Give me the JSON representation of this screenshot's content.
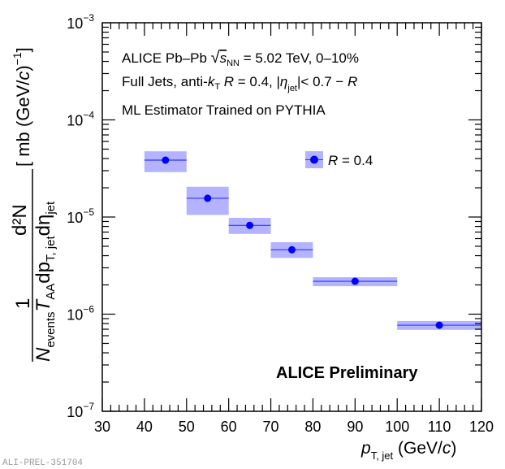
{
  "chart_data": {
    "type": "scatter",
    "title": "",
    "annotations": {
      "line1": {
        "prefix": "ALICE Pb–Pb ",
        "sqrt_symbol": "√",
        "s": "s",
        "s_sub": "NN",
        "suffix": " = 5.02 TeV, 0–10%"
      },
      "line2": {
        "prefix": "Full Jets, anti-",
        "k": "k",
        "k_sub": "T",
        "R_part": " R",
        "mid": " = 0.4, |",
        "eta": "η",
        "eta_sub": "jet",
        "suffix": "|< 0.7 − ",
        "R_end": "R"
      },
      "line3": "ML Estimator Trained on PYTHIA",
      "preliminary": "ALICE Preliminary",
      "figure_id": "ALI-PREL-351704"
    },
    "legend": {
      "position": "top-right",
      "entries": [
        {
          "label_italic": "R",
          "label_rest": " = 0.4",
          "color": "#0000ff",
          "box_color": "#b3b3ff"
        }
      ]
    },
    "xlabel": {
      "main": "p",
      "sub": "T, jet",
      "unit": " (GeV/",
      "unit_italic": "c",
      "unit_close": ")"
    },
    "ylabel": {
      "numerator": "d²N",
      "one": "1",
      "n": "N",
      "n_sub": "events",
      "taa": "T",
      "taa_sub": "AA",
      "dp": "dp",
      "dp_sub": "T, jet",
      "deta": "dη",
      "deta_sub": "jet",
      "unit": "[ mb (GeV/",
      "unit_italic": "c",
      "unit_close": ")",
      "unit_exp": "−1",
      "unit_end": "]"
    },
    "xlim": [
      30,
      120
    ],
    "ylim": [
      1e-07,
      0.001
    ],
    "yscale": "log",
    "xticks": [
      30,
      40,
      50,
      60,
      70,
      80,
      90,
      100,
      110,
      120
    ],
    "yticks": [
      {
        "value": 1e-07,
        "base": "10",
        "exp": "−7"
      },
      {
        "value": 1e-06,
        "base": "10",
        "exp": "−6"
      },
      {
        "value": 1e-05,
        "base": "10",
        "exp": "−5"
      },
      {
        "value": 0.0001,
        "base": "10",
        "exp": "−4"
      },
      {
        "value": 0.001,
        "base": "10",
        "exp": "−3"
      }
    ],
    "series": [
      {
        "name": "R = 0.4",
        "color": "#0000ff",
        "syst_color": "#b3b3ff",
        "points": [
          {
            "x": 45,
            "xlow": 40,
            "xhigh": 50,
            "y": 3.85e-05,
            "syst_low": 2.9e-05,
            "syst_high": 4.75e-05
          },
          {
            "x": 55,
            "xlow": 50,
            "xhigh": 60,
            "y": 1.56e-05,
            "syst_low": 1.05e-05,
            "syst_high": 2.05e-05
          },
          {
            "x": 65,
            "xlow": 60,
            "xhigh": 70,
            "y": 8.2e-06,
            "syst_low": 6.7e-06,
            "syst_high": 9.8e-06
          },
          {
            "x": 75,
            "xlow": 70,
            "xhigh": 80,
            "y": 4.6e-06,
            "syst_low": 3.8e-06,
            "syst_high": 5.5e-06
          },
          {
            "x": 90,
            "xlow": 80,
            "xhigh": 100,
            "y": 2.18e-06,
            "syst_low": 1.94e-06,
            "syst_high": 2.4e-06
          },
          {
            "x": 110,
            "xlow": 100,
            "xhigh": 120,
            "y": 7.7e-07,
            "syst_low": 6.9e-07,
            "syst_high": 8.5e-07
          }
        ]
      }
    ]
  }
}
